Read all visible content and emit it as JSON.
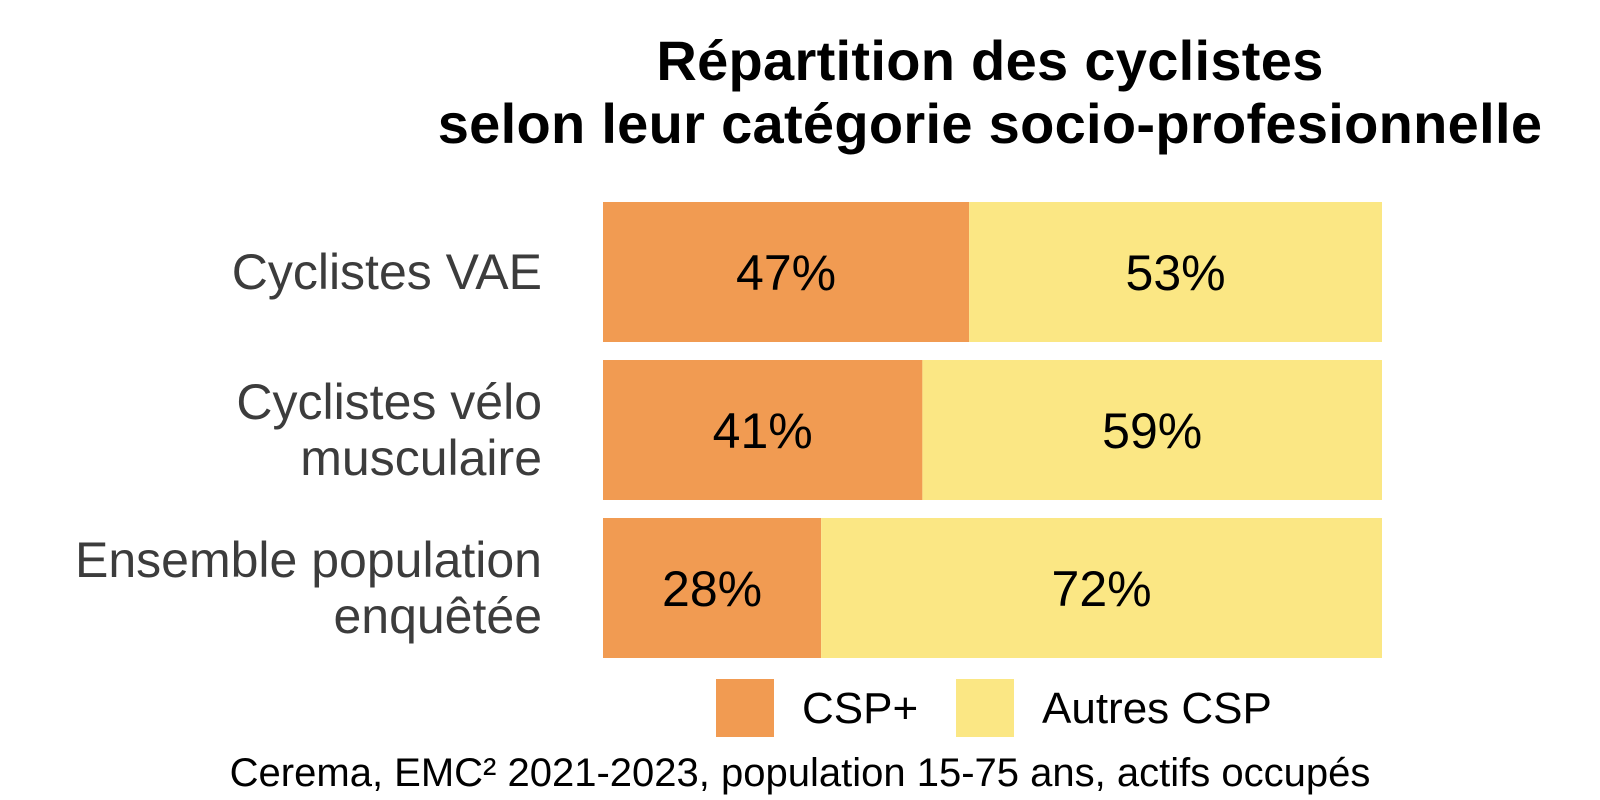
{
  "chart_data": {
    "type": "bar",
    "orientation": "horizontal",
    "stacked": true,
    "percent": true,
    "title": [
      "Répartition des cyclistes",
      "selon leur catégorie socio-profesionnelle"
    ],
    "categories": [
      [
        "Cyclistes VAE"
      ],
      [
        "Cyclistes vélo",
        "musculaire"
      ],
      [
        "Ensemble population",
        "enquêtée"
      ]
    ],
    "series": [
      {
        "name": "CSP+",
        "color": "#f19b52",
        "values": [
          47,
          41,
          28
        ],
        "labels": [
          "47%",
          "41%",
          "28%"
        ]
      },
      {
        "name": "Autres CSP",
        "color": "#fbe784",
        "values": [
          53,
          59,
          72
        ],
        "labels": [
          "53%",
          "59%",
          "72%"
        ]
      }
    ],
    "xlim": [
      0,
      100
    ],
    "grid": false,
    "legend_position": "bottom",
    "source": "Cerema, EMC² 2021-2023, population 15-75 ans, actifs occupés"
  }
}
